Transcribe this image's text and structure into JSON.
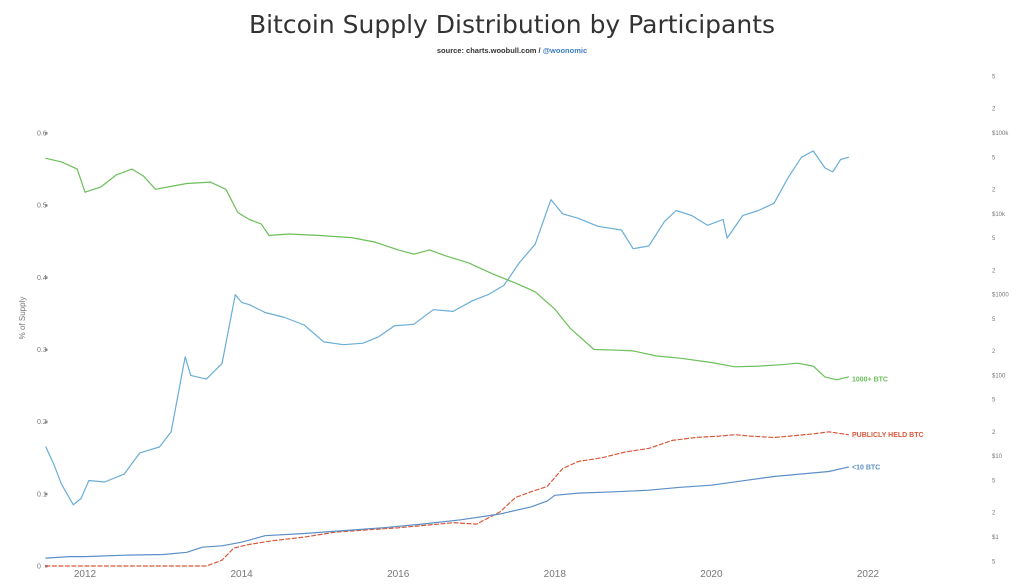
{
  "chart_data": {
    "type": "line",
    "title": "Bitcoin Supply Distribution by Participants",
    "subtitle": {
      "source": "source: charts.woobull.com /",
      "handle": "@woonomic"
    },
    "ylabel": "% of Supply",
    "xlabel": "",
    "ylim": [
      0,
      0.6
    ],
    "x_ticks": [
      "2012",
      "2014",
      "2016",
      "2018",
      "2020",
      "2022"
    ],
    "y_ticks": [
      "0",
      "0.1",
      "0.2",
      "0.3",
      "0.4",
      "0.5",
      "0.6"
    ],
    "y2_scale": "log",
    "y2_ticks": [
      {
        "value": 1,
        "label": "$1"
      },
      {
        "value": 10,
        "label": "$10"
      },
      {
        "value": 100,
        "label": "$100"
      },
      {
        "value": 1000,
        "label": "$1000"
      },
      {
        "value": 10000,
        "label": "$10k"
      },
      {
        "value": 100000,
        "label": "$100k"
      }
    ],
    "y2_minor_ticks": [
      {
        "value": 0.5,
        "label": "5"
      },
      {
        "value": 2,
        "label": "2"
      },
      {
        "value": 5,
        "label": "5"
      },
      {
        "value": 20,
        "label": "2"
      },
      {
        "value": 50,
        "label": "5"
      },
      {
        "value": 200,
        "label": "2"
      },
      {
        "value": 500,
        "label": "5"
      },
      {
        "value": 2000,
        "label": "2"
      },
      {
        "value": 5000,
        "label": "5"
      },
      {
        "value": 20000,
        "label": "2"
      },
      {
        "value": 50000,
        "label": "5"
      },
      {
        "value": 200000,
        "label": "2"
      },
      {
        "value": 500000,
        "label": "5"
      }
    ],
    "grid": false,
    "series": [
      {
        "name": "1000+ BTC",
        "axis": "left",
        "color": "#6bbf59",
        "dash": "solid",
        "points": [
          [
            2011.5,
            0.565
          ],
          [
            2011.7,
            0.56
          ],
          [
            2011.9,
            0.55
          ],
          [
            2012.0,
            0.518
          ],
          [
            2012.2,
            0.525
          ],
          [
            2012.4,
            0.542
          ],
          [
            2012.6,
            0.55
          ],
          [
            2012.75,
            0.54
          ],
          [
            2012.9,
            0.522
          ],
          [
            2013.1,
            0.526
          ],
          [
            2013.3,
            0.53
          ],
          [
            2013.6,
            0.532
          ],
          [
            2013.8,
            0.522
          ],
          [
            2013.95,
            0.49
          ],
          [
            2014.1,
            0.48
          ],
          [
            2014.25,
            0.474
          ],
          [
            2014.35,
            0.458
          ],
          [
            2014.6,
            0.46
          ],
          [
            2015.0,
            0.458
          ],
          [
            2015.4,
            0.455
          ],
          [
            2015.7,
            0.449
          ],
          [
            2016.0,
            0.438
          ],
          [
            2016.2,
            0.432
          ],
          [
            2016.4,
            0.438
          ],
          [
            2016.6,
            0.43
          ],
          [
            2016.9,
            0.42
          ],
          [
            2017.2,
            0.405
          ],
          [
            2017.5,
            0.392
          ],
          [
            2017.75,
            0.38
          ],
          [
            2018.0,
            0.356
          ],
          [
            2018.2,
            0.329
          ],
          [
            2018.5,
            0.3
          ],
          [
            2018.8,
            0.299
          ],
          [
            2019.0,
            0.298
          ],
          [
            2019.3,
            0.291
          ],
          [
            2019.6,
            0.288
          ],
          [
            2020.0,
            0.282
          ],
          [
            2020.3,
            0.276
          ],
          [
            2020.6,
            0.277
          ],
          [
            2020.9,
            0.279
          ],
          [
            2021.1,
            0.281
          ],
          [
            2021.3,
            0.277
          ],
          [
            2021.45,
            0.262
          ],
          [
            2021.6,
            0.258
          ],
          [
            2021.75,
            0.262
          ]
        ]
      },
      {
        "name": "PUBLICLY HELD BTC",
        "axis": "left",
        "color": "#d9583b",
        "dash": "dashed",
        "points": [
          [
            2011.5,
            0.0
          ],
          [
            2012.0,
            0.0
          ],
          [
            2013.0,
            0.0
          ],
          [
            2013.55,
            0.0
          ],
          [
            2013.75,
            0.008
          ],
          [
            2013.9,
            0.025
          ],
          [
            2014.1,
            0.03
          ],
          [
            2014.4,
            0.035
          ],
          [
            2014.8,
            0.04
          ],
          [
            2015.2,
            0.047
          ],
          [
            2015.6,
            0.05
          ],
          [
            2016.0,
            0.053
          ],
          [
            2016.4,
            0.057
          ],
          [
            2016.7,
            0.06
          ],
          [
            2017.0,
            0.058
          ],
          [
            2017.3,
            0.075
          ],
          [
            2017.5,
            0.095
          ],
          [
            2017.7,
            0.103
          ],
          [
            2017.9,
            0.11
          ],
          [
            2018.1,
            0.135
          ],
          [
            2018.3,
            0.145
          ],
          [
            2018.6,
            0.15
          ],
          [
            2018.9,
            0.158
          ],
          [
            2019.2,
            0.163
          ],
          [
            2019.5,
            0.174
          ],
          [
            2019.8,
            0.178
          ],
          [
            2020.1,
            0.18
          ],
          [
            2020.3,
            0.182
          ],
          [
            2020.5,
            0.18
          ],
          [
            2020.8,
            0.178
          ],
          [
            2021.0,
            0.18
          ],
          [
            2021.3,
            0.183
          ],
          [
            2021.5,
            0.186
          ],
          [
            2021.75,
            0.182
          ]
        ]
      },
      {
        "name": "<10 BTC",
        "axis": "left",
        "color": "#5b8fc7",
        "dash": "solid",
        "points": [
          [
            2011.5,
            0.011
          ],
          [
            2011.8,
            0.013
          ],
          [
            2012.0,
            0.013
          ],
          [
            2012.5,
            0.015
          ],
          [
            2013.0,
            0.016
          ],
          [
            2013.3,
            0.019
          ],
          [
            2013.5,
            0.026
          ],
          [
            2013.75,
            0.028
          ],
          [
            2014.0,
            0.033
          ],
          [
            2014.3,
            0.042
          ],
          [
            2014.8,
            0.045
          ],
          [
            2015.3,
            0.049
          ],
          [
            2015.8,
            0.053
          ],
          [
            2016.3,
            0.058
          ],
          [
            2016.8,
            0.064
          ],
          [
            2017.3,
            0.072
          ],
          [
            2017.7,
            0.082
          ],
          [
            2017.9,
            0.09
          ],
          [
            2018.0,
            0.098
          ],
          [
            2018.3,
            0.101
          ],
          [
            2018.8,
            0.103
          ],
          [
            2019.2,
            0.105
          ],
          [
            2019.6,
            0.109
          ],
          [
            2020.0,
            0.112
          ],
          [
            2020.4,
            0.118
          ],
          [
            2020.8,
            0.124
          ],
          [
            2021.2,
            0.128
          ],
          [
            2021.5,
            0.131
          ],
          [
            2021.75,
            0.137
          ]
        ]
      },
      {
        "name": "",
        "axis": "right",
        "color": "#6aaed6",
        "dash": "solid",
        "points": [
          [
            2011.5,
            13
          ],
          [
            2011.6,
            8
          ],
          [
            2011.7,
            4.5
          ],
          [
            2011.85,
            2.5
          ],
          [
            2011.95,
            3
          ],
          [
            2012.05,
            5
          ],
          [
            2012.25,
            4.8
          ],
          [
            2012.5,
            6
          ],
          [
            2012.7,
            11
          ],
          [
            2012.95,
            13
          ],
          [
            2013.1,
            20
          ],
          [
            2013.28,
            170
          ],
          [
            2013.35,
            100
          ],
          [
            2013.55,
            90
          ],
          [
            2013.75,
            140
          ],
          [
            2013.92,
            1000
          ],
          [
            2014.0,
            800
          ],
          [
            2014.1,
            750
          ],
          [
            2014.3,
            600
          ],
          [
            2014.55,
            520
          ],
          [
            2014.8,
            420
          ],
          [
            2015.05,
            260
          ],
          [
            2015.3,
            240
          ],
          [
            2015.55,
            250
          ],
          [
            2015.75,
            300
          ],
          [
            2015.95,
            410
          ],
          [
            2016.2,
            430
          ],
          [
            2016.45,
            650
          ],
          [
            2016.7,
            620
          ],
          [
            2016.95,
            840
          ],
          [
            2017.15,
            1000
          ],
          [
            2017.35,
            1300
          ],
          [
            2017.55,
            2500
          ],
          [
            2017.75,
            4200
          ],
          [
            2017.95,
            15000
          ],
          [
            2018.1,
            10000
          ],
          [
            2018.3,
            8800
          ],
          [
            2018.55,
            7000
          ],
          [
            2018.85,
            6300
          ],
          [
            2019.0,
            3700
          ],
          [
            2019.2,
            4000
          ],
          [
            2019.4,
            8000
          ],
          [
            2019.55,
            11000
          ],
          [
            2019.75,
            9500
          ],
          [
            2019.95,
            7200
          ],
          [
            2020.15,
            8500
          ],
          [
            2020.2,
            5000
          ],
          [
            2020.4,
            9500
          ],
          [
            2020.6,
            11000
          ],
          [
            2020.8,
            13500
          ],
          [
            2020.98,
            28000
          ],
          [
            2021.15,
            50000
          ],
          [
            2021.3,
            60000
          ],
          [
            2021.45,
            37000
          ],
          [
            2021.55,
            33000
          ],
          [
            2021.65,
            47000
          ],
          [
            2021.75,
            50000
          ]
        ]
      }
    ]
  }
}
